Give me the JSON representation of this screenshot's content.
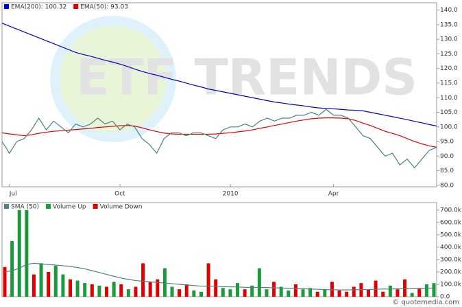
{
  "chart_data": [
    {
      "type": "line",
      "watermark": "ETF TRENDS",
      "categories": [
        null,
        "Jul",
        null,
        null,
        null,
        null,
        null,
        null,
        null,
        null,
        null,
        null,
        null,
        null,
        null,
        null,
        "Oct",
        null,
        null,
        null,
        null,
        null,
        null,
        null,
        null,
        null,
        null,
        null,
        null,
        null,
        null,
        "2010",
        null,
        null,
        null,
        null,
        null,
        null,
        null,
        null,
        null,
        null,
        null,
        null,
        null,
        "Apr",
        null,
        null,
        null,
        null,
        null,
        null,
        null,
        null,
        null,
        null,
        null,
        null,
        null,
        null
      ],
      "series": [
        {
          "name": "EMA(200): 100.32",
          "color": "#0000cc",
          "values": [
            135.5,
            134.5,
            133.5,
            132.5,
            131.5,
            130.5,
            129.5,
            128.5,
            127.5,
            126.5,
            125.5,
            124.8,
            124.2,
            123.5,
            122.8,
            122.2,
            121.5,
            120.7,
            119.8,
            119,
            118.3,
            117.7,
            117,
            116.3,
            115.7,
            115,
            114.3,
            113.7,
            113,
            112.5,
            112,
            111.5,
            111,
            110.5,
            110,
            109.5,
            109,
            108.5,
            108.2,
            107.8,
            107.5,
            107.2,
            106.8,
            106.5,
            106.3,
            106.2,
            106,
            105.8,
            105.7,
            105.5,
            105,
            104.5,
            104,
            103.5,
            103,
            102.5,
            101.9,
            101.4,
            100.8,
            100.32
          ]
        },
        {
          "name": "EMA(50): 93.03",
          "color": "#dd0000",
          "values": [
            98,
            97.6,
            97.3,
            97,
            97.3,
            97.8,
            98.2,
            98.5,
            98.7,
            98.9,
            99.1,
            99.3,
            99.5,
            99.8,
            100,
            100.2,
            100.4,
            100.5,
            100.3,
            99.7,
            99,
            98.4,
            97.9,
            97.6,
            97.5,
            97.5,
            97.5,
            97.5,
            97.5,
            97.6,
            97.8,
            98,
            98.3,
            98.6,
            99,
            99.5,
            100,
            100.5,
            101,
            101.5,
            102,
            102.4,
            102.8,
            103,
            103.1,
            103.1,
            103,
            102.8,
            102.2,
            101.3,
            100.5,
            99.5,
            98.5,
            97.8,
            97,
            96,
            95,
            94.2,
            93.5,
            93.03
          ]
        },
        {
          "color": "#4a8080",
          "values": [
            95,
            91,
            95,
            96,
            99,
            103,
            99,
            102,
            100,
            98,
            101,
            100,
            101,
            103,
            101,
            102,
            99,
            101,
            100,
            96,
            94,
            91,
            96,
            98,
            98,
            97,
            98,
            98,
            97,
            96,
            99,
            100,
            100,
            101,
            100,
            102,
            103,
            102,
            103,
            103,
            104,
            104,
            105,
            104,
            106,
            104,
            104,
            103,
            100,
            97,
            96,
            93,
            90,
            91,
            87,
            89,
            86,
            89,
            92,
            93
          ]
        }
      ],
      "ylim": [
        79.5,
        142.5
      ],
      "yticks": [
        {
          "value": 80,
          "label": "80.0"
        },
        {
          "value": 85,
          "label": "85.0"
        },
        {
          "value": 90,
          "label": "90.0"
        },
        {
          "value": 95,
          "label": "95.0"
        },
        {
          "value": 100,
          "label": "100.0"
        },
        {
          "value": 105,
          "label": "105.0"
        },
        {
          "value": 110,
          "label": "110.0"
        },
        {
          "value": 115,
          "label": "115.0"
        },
        {
          "value": 120,
          "label": "120.0"
        },
        {
          "value": 125,
          "label": "125.0"
        },
        {
          "value": 130,
          "label": "130.0"
        },
        {
          "value": 135,
          "label": "135.0"
        },
        {
          "value": 140,
          "label": "140.0"
        }
      ]
    },
    {
      "type": "bar",
      "credit": "© quotemedia.com",
      "series": [
        {
          "name": "SMA (50)",
          "type": "line",
          "color": "#508080",
          "values": [
            200000,
            210000,
            230000,
            260000,
            270000,
            265000,
            260000,
            255000,
            250000,
            245000,
            235000,
            225000,
            210000,
            195000,
            180000,
            165000,
            150000,
            140000,
            130000,
            125000,
            120000,
            115000,
            110000,
            105000,
            100000,
            95000,
            90000,
            85000,
            85000,
            85000,
            80000,
            80000,
            78000,
            76000,
            75000,
            75000,
            74000,
            72000,
            70000,
            68000,
            66000,
            64000,
            62000,
            60000,
            58000,
            56000,
            55000,
            55000,
            56000,
            57000,
            58000,
            60000,
            62000,
            62000,
            63000,
            64000,
            65000,
            66000,
            68000,
            70000
          ]
        },
        {
          "name": "Volume Up",
          "color": "#1a9a3a",
          "values": [
            null,
            450000,
            700000,
            700000,
            null,
            270000,
            null,
            250000,
            180000,
            null,
            130000,
            110000,
            null,
            90000,
            null,
            120000,
            null,
            60000,
            null,
            null,
            null,
            null,
            230000,
            80000,
            null,
            null,
            50000,
            40000,
            null,
            null,
            70000,
            60000,
            110000,
            null,
            90000,
            230000,
            60000,
            null,
            80000,
            50000,
            null,
            60000,
            70000,
            null,
            60000,
            null,
            null,
            null,
            null,
            null,
            null,
            null,
            null,
            90000,
            null,
            null,
            30000,
            null,
            100000,
            110000
          ]
        },
        {
          "name": "Volume Down",
          "color": "#e00000",
          "values": [
            240000,
            null,
            null,
            null,
            180000,
            null,
            200000,
            null,
            null,
            140000,
            null,
            null,
            100000,
            null,
            80000,
            null,
            100000,
            null,
            80000,
            270000,
            120000,
            140000,
            null,
            null,
            60000,
            100000,
            null,
            null,
            270000,
            140000,
            null,
            null,
            null,
            60000,
            null,
            null,
            null,
            120000,
            null,
            null,
            100000,
            null,
            null,
            40000,
            null,
            120000,
            50000,
            40000,
            80000,
            110000,
            60000,
            130000,
            40000,
            null,
            60000,
            140000,
            null,
            70000,
            null,
            null
          ]
        }
      ],
      "ylim": [
        0,
        760000
      ],
      "yticks": [
        {
          "value": 0,
          "label": "0.0"
        },
        {
          "value": 100000,
          "label": "100.0k"
        },
        {
          "value": 200000,
          "label": "200.0k"
        },
        {
          "value": 300000,
          "label": "300.0k"
        },
        {
          "value": 400000,
          "label": "400.0k"
        },
        {
          "value": 500000,
          "label": "500.0k"
        },
        {
          "value": 600000,
          "label": "600.0k"
        },
        {
          "value": 700000,
          "label": "700.0k"
        }
      ]
    }
  ]
}
